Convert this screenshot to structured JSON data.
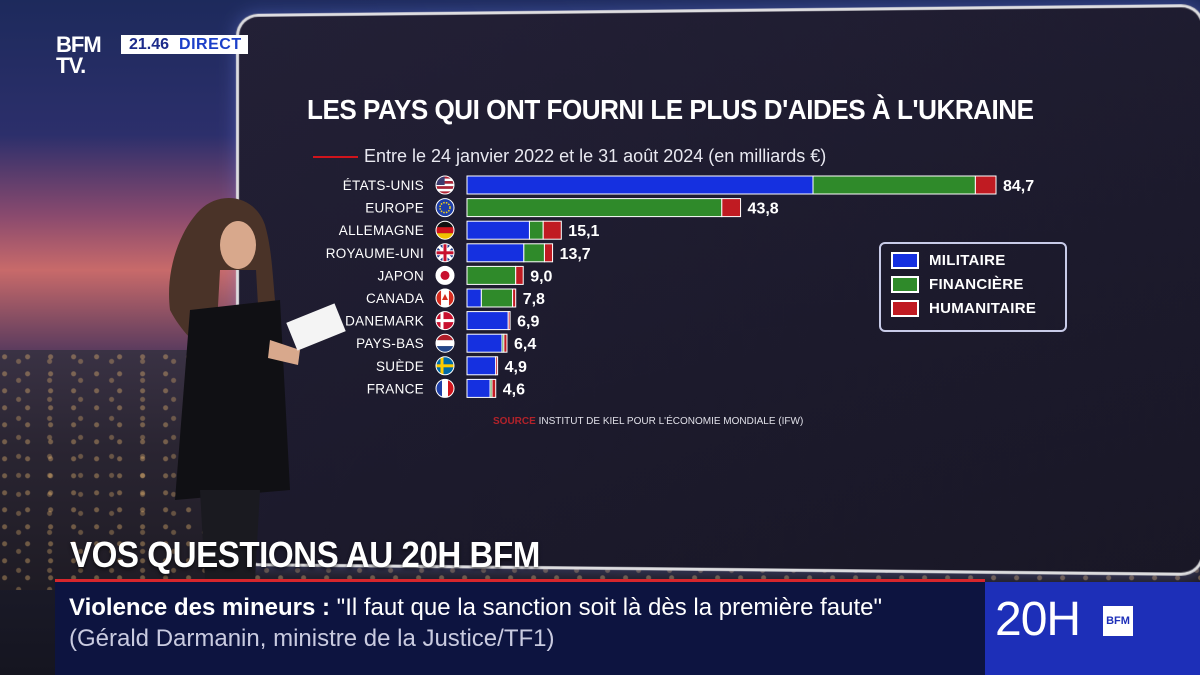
{
  "broadcast": {
    "logo_top": "BFM",
    "logo_bottom": "TV.",
    "time": "21.46",
    "live": "DIRECT"
  },
  "segment_title": "VOS QUESTIONS AU 20H BFM",
  "ticker": {
    "topic": "Violence des mineurs :",
    "quote": " \"Il faut que la sanction soit là dès la première faute\"",
    "attribution": " (Gérald Darmanin, ministre de la Justice/TF1)"
  },
  "program_badge": {
    "label": "20H",
    "brand": "BFM"
  },
  "source": {
    "key": "SOURCE",
    "text": "INSTITUT DE KIEL POUR L'ÉCONOMIE MONDIALE (IFW)"
  },
  "colors": {
    "militaire": "#1530e0",
    "financiere": "#2f8a2a",
    "humanitaire": "#c01b22"
  },
  "chart_data": {
    "type": "bar",
    "orientation": "horizontal",
    "stacked": true,
    "title": "LES PAYS QUI ONT FOURNI LE PLUS D'AIDES À L'UKRAINE",
    "subtitle": "Entre le 24 janvier 2022 et le 31 août 2024 (en milliards €)",
    "categories": [
      "ÉTATS-UNIS",
      "EUROPE",
      "ALLEMAGNE",
      "ROYAUME-UNI",
      "JAPON",
      "CANADA",
      "DANEMARK",
      "PAYS-BAS",
      "SUÈDE",
      "FRANCE"
    ],
    "flags": [
      "us",
      "eu",
      "de",
      "gb",
      "jp",
      "ca",
      "dk",
      "nl",
      "se",
      "fr"
    ],
    "totals": [
      "84,7",
      "43,8",
      "15,1",
      "13,7",
      "9,0",
      "7,8",
      "6,9",
      "6,4",
      "4,9",
      "4,6"
    ],
    "series": [
      {
        "name": "MILITAIRE",
        "values": [
          55.4,
          0.0,
          10.0,
          9.1,
          0.0,
          2.3,
          6.6,
          5.6,
          4.6,
          3.7
        ]
      },
      {
        "name": "FINANCIÈRE",
        "values": [
          26.0,
          40.8,
          2.2,
          3.3,
          7.8,
          5.0,
          0.0,
          0.3,
          0.0,
          0.3
        ]
      },
      {
        "name": "HUMANITAIRE",
        "values": [
          3.3,
          3.0,
          2.9,
          1.3,
          1.2,
          0.5,
          0.3,
          0.5,
          0.3,
          0.6
        ]
      }
    ],
    "xlim": [
      0,
      84.7
    ],
    "legend_position": "right"
  }
}
